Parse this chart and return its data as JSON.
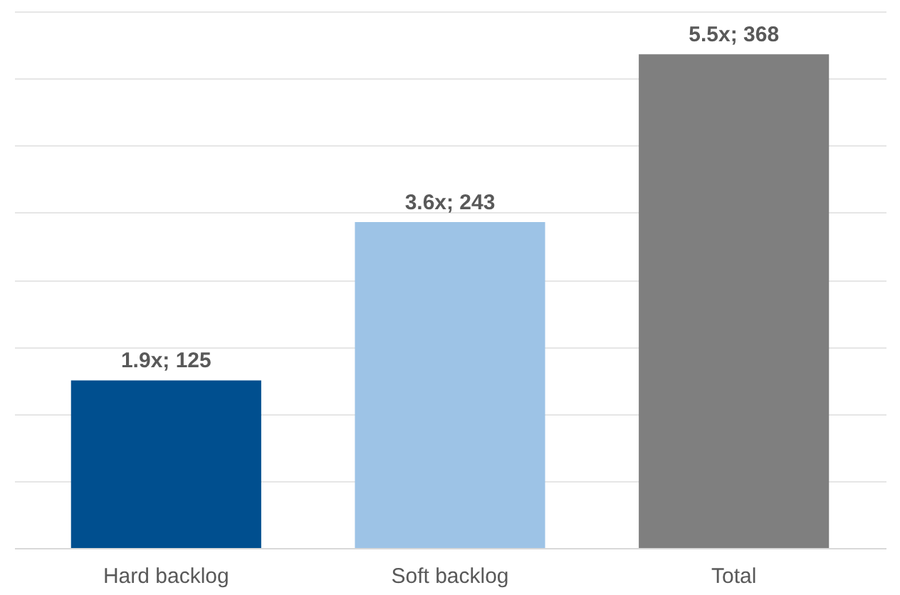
{
  "chart_data": {
    "type": "bar",
    "categories": [
      "Hard backlog",
      "Soft backlog",
      "Total"
    ],
    "values": [
      125,
      243,
      368
    ],
    "colors": [
      "#004f8f",
      "#9dc3e6",
      "#7f7f7f"
    ],
    "value_labels": [
      "1.9x; 125",
      "3.6x; 243",
      "5.5x; 368"
    ],
    "tick_labels": "x",
    "grid": "y"
  }
}
